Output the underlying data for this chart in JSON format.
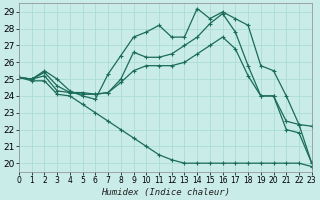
{
  "xlabel": "Humidex (Indice chaleur)",
  "xlim": [
    0,
    23
  ],
  "ylim": [
    19.5,
    29.5
  ],
  "xticks": [
    0,
    1,
    2,
    3,
    4,
    5,
    6,
    7,
    8,
    9,
    10,
    11,
    12,
    13,
    14,
    15,
    16,
    17,
    18,
    19,
    20,
    21,
    22,
    23
  ],
  "yticks": [
    20,
    21,
    22,
    23,
    24,
    25,
    26,
    27,
    28,
    29
  ],
  "bg_color": "#c9ece8",
  "grid_color": "#aaddd6",
  "line_color": "#1a6b5a",
  "lines": [
    [
      25.1,
      25.0,
      25.5,
      25.0,
      24.3,
      24.0,
      23.8,
      25.3,
      26.4,
      27.5,
      27.8,
      28.2,
      27.5,
      27.5,
      29.2,
      28.6,
      29.0,
      28.6,
      28.2,
      25.8,
      25.5,
      24.0,
      22.3,
      22.2
    ],
    [
      25.1,
      25.0,
      25.4,
      24.6,
      24.2,
      24.2,
      24.1,
      24.2,
      25.0,
      26.6,
      26.3,
      26.3,
      26.5,
      27.0,
      27.5,
      28.3,
      28.9,
      27.8,
      25.8,
      24.0,
      24.0,
      22.5,
      22.3,
      20.0
    ],
    [
      25.1,
      25.0,
      25.2,
      24.3,
      24.2,
      24.1,
      24.1,
      24.2,
      24.8,
      25.5,
      25.8,
      25.8,
      25.8,
      26.0,
      26.5,
      27.0,
      27.5,
      26.8,
      25.2,
      24.0,
      24.0,
      22.0,
      21.8,
      20.0
    ],
    [
      25.1,
      24.9,
      24.9,
      24.1,
      24.0,
      23.5,
      23.0,
      22.5,
      22.0,
      21.5,
      21.0,
      20.5,
      20.2,
      20.0,
      20.0,
      20.0,
      20.0,
      20.0,
      20.0,
      20.0,
      20.0,
      20.0,
      20.0,
      19.8
    ]
  ],
  "xtick_fontsize": 5.5,
  "ytick_fontsize": 6.5,
  "xlabel_fontsize": 6.5
}
